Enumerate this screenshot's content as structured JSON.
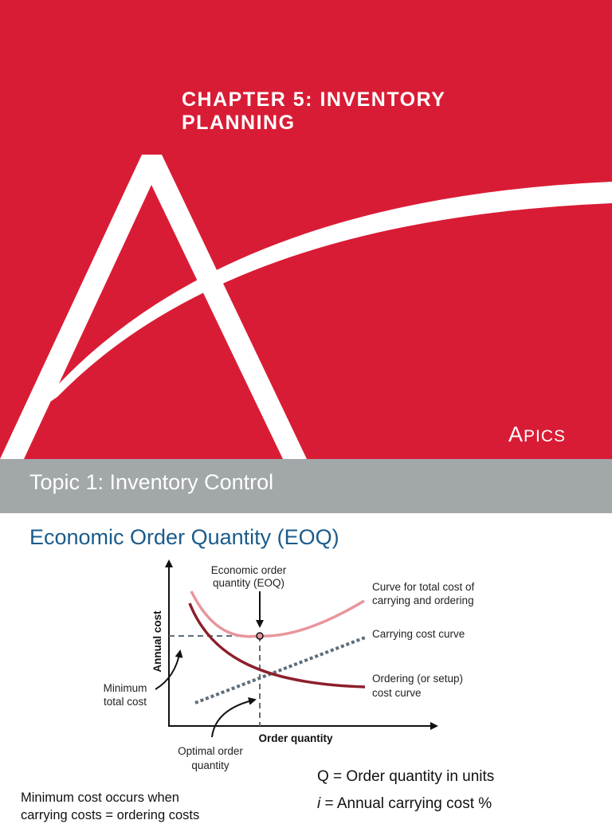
{
  "cover": {
    "title_line1": "CHAPTER 5: INVENTORY",
    "title_line2": "PLANNING",
    "logo_a": "A",
    "logo_rest": "PICS",
    "background_color": "#d91c35"
  },
  "topic": {
    "title": "Topic 1: Inventory Control",
    "bar_color": "#a2a7a9"
  },
  "section": {
    "title": "Economic Order Quantity (EOQ)",
    "title_color": "#1a5b8c"
  },
  "figure": {
    "eoq_label_line1": "Economic order",
    "eoq_label_line2": "quantity (EOQ)",
    "total_curve_line1": "Curve for total cost of",
    "total_curve_line2": "carrying and ordering",
    "carrying_curve": "Carrying cost curve",
    "ordering_curve_line1": "Ordering (or setup)",
    "ordering_curve_line2": "cost curve",
    "min_cost_line1": "Minimum",
    "min_cost_line2": "total cost",
    "optimal_line1": "Optimal order",
    "optimal_line2": "quantity",
    "y_axis": "Annual cost",
    "x_axis": "Order quantity",
    "colors": {
      "total_curve": "#e8959d",
      "ordering_curve": "#8c1f2c",
      "carrying_line": "#5f6e7a"
    }
  },
  "formulas": [
    {
      "symbol": "Q",
      "text": " = Order quantity in units"
    },
    {
      "symbol": "i",
      "text": " = Annual carrying cost %"
    }
  ],
  "note": {
    "line1": "Minimum cost occurs when",
    "line2": "carrying costs = ordering costs"
  }
}
